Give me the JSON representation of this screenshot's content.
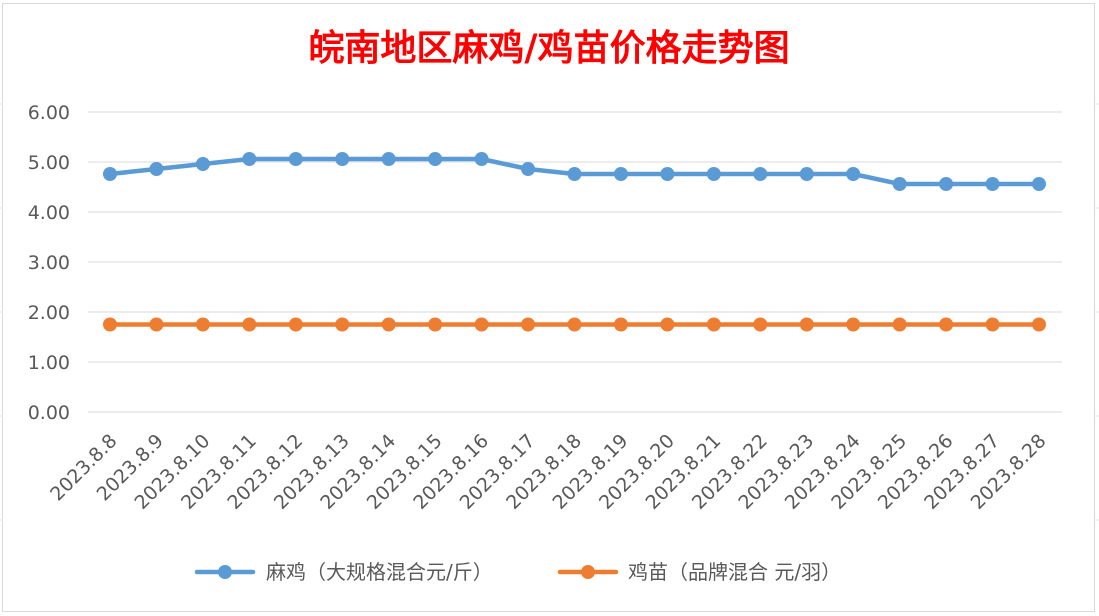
{
  "chart_data": {
    "type": "line",
    "title": "皖南地区麻鸡/鸡苗价格走势图",
    "title_color": "#ff0000",
    "categories": [
      "2023.8.8",
      "2023.8.9",
      "2023.8.10",
      "2023.8.11",
      "2023.8.12",
      "2023.8.13",
      "2023.8.14",
      "2023.8.15",
      "2023.8.16",
      "2023.8.17",
      "2023.8.18",
      "2023.8.19",
      "2023.8.20",
      "2023.8.21",
      "2023.8.22",
      "2023.8.23",
      "2023.8.24",
      "2023.8.25",
      "2023.8.26",
      "2023.8.27",
      "2023.8.28"
    ],
    "y_ticks": [
      "0.00",
      "1.00",
      "2.00",
      "3.00",
      "4.00",
      "5.00",
      "6.00"
    ],
    "ylim": [
      0,
      6
    ],
    "grid": true,
    "legend_position": "bottom",
    "series": [
      {
        "name": "麻鸡（大规格混合元/斤）",
        "color": "#5b9bd5",
        "values": [
          4.76,
          4.86,
          4.96,
          5.06,
          5.06,
          5.06,
          5.06,
          5.06,
          5.06,
          4.86,
          4.76,
          4.76,
          4.76,
          4.76,
          4.76,
          4.76,
          4.76,
          4.56,
          4.56,
          4.56,
          4.56
        ]
      },
      {
        "name": "鸡苗（品牌混合 元/羽）",
        "color": "#ed7d31",
        "values": [
          1.75,
          1.75,
          1.75,
          1.75,
          1.75,
          1.75,
          1.75,
          1.75,
          1.75,
          1.75,
          1.75,
          1.75,
          1.75,
          1.75,
          1.75,
          1.75,
          1.75,
          1.75,
          1.75,
          1.75,
          1.75
        ]
      }
    ]
  }
}
